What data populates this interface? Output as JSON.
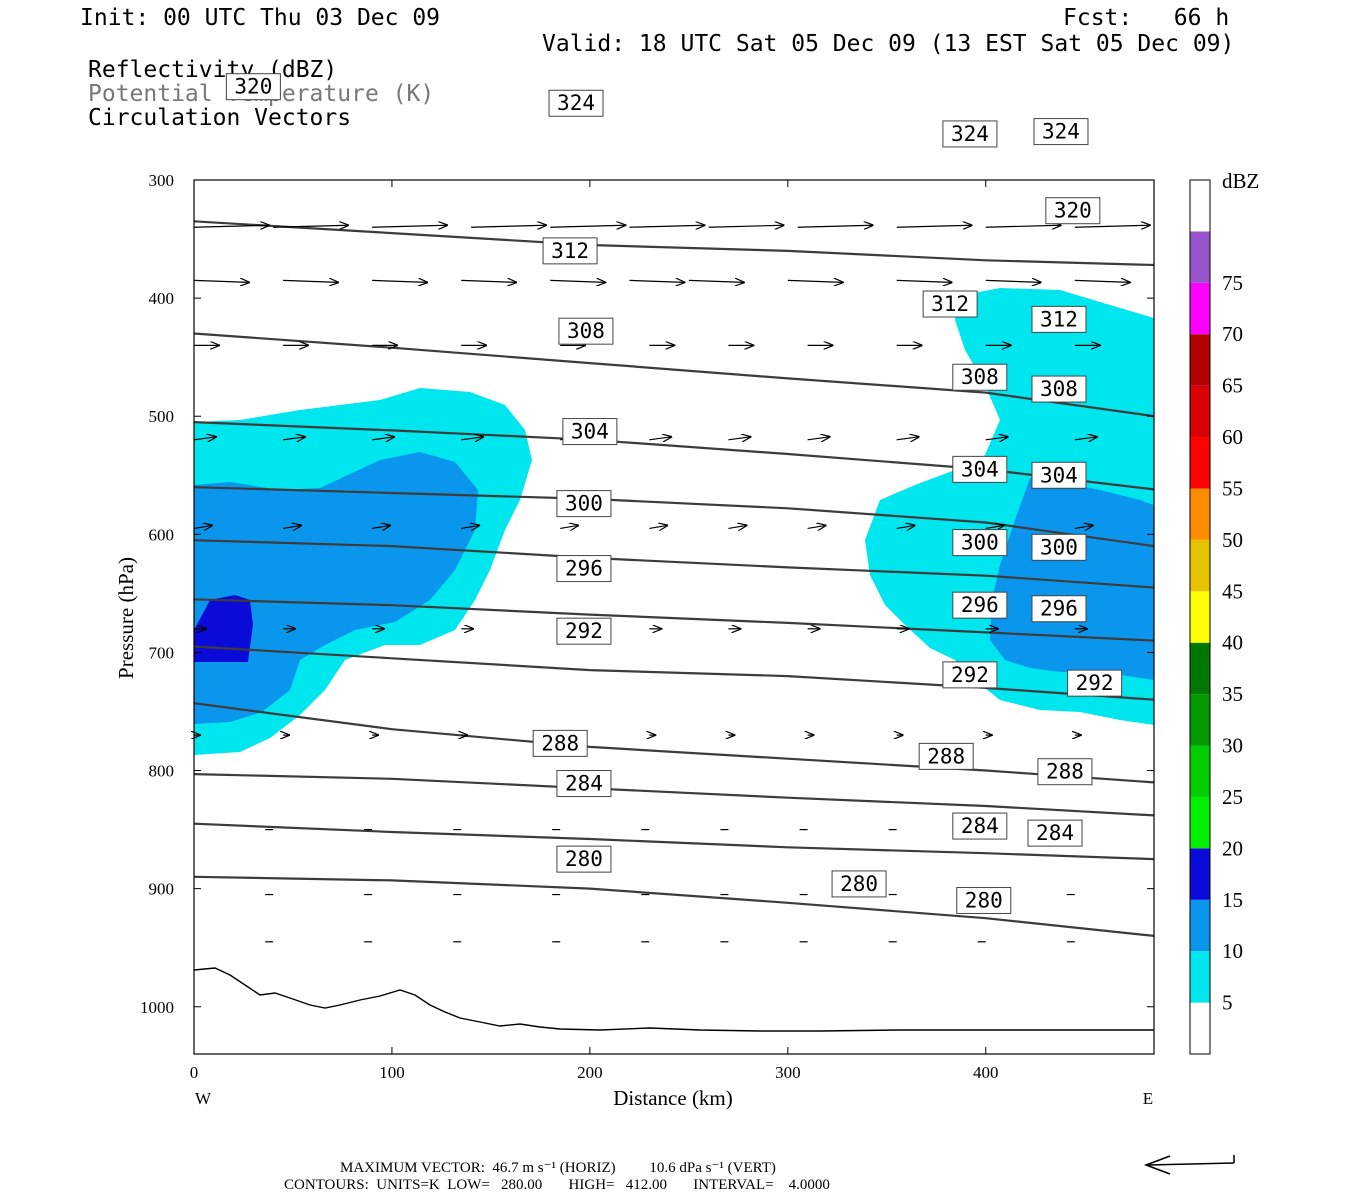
{
  "header": {
    "init": "Init: 00 UTC Thu 03 Dec 09",
    "fcst": "Fcst:   66 h",
    "valid": "Valid: 18 UTC Sat 05 Dec 09 (13 EST Sat 05 Dec 09)",
    "field1": "Reflectivity (dBZ)",
    "field2": "Potential Temperature (K)",
    "field3": "Circulation Vectors"
  },
  "footer": {
    "max_vector": "MAXIMUM VECTOR:  46.7 m s⁻¹ (HORIZ)         10.6 dPa s⁻¹ (VERT)",
    "contours": "CONTOURS:  UNITS=K  LOW=   280.00       HIGH=   412.00       INTERVAL=    4.0000"
  },
  "colors": {
    "refl_5": "#00e6ee",
    "refl_10": "#0b96ee",
    "refl_15": "#0b0bd9",
    "contour": "#3c3c3c"
  },
  "chart_data": {
    "type": "heatmap",
    "xlabel": "Distance (km)",
    "ylabel": "Pressure (hPa)",
    "xlim": [
      0,
      485
    ],
    "ylim": [
      1040,
      300
    ],
    "x_ticks": [
      0,
      100,
      200,
      300,
      400
    ],
    "y_ticks": [
      300,
      400,
      500,
      600,
      700,
      800,
      900,
      1000
    ],
    "x_end_labels": {
      "left": "W",
      "right": "E"
    },
    "colorbar": {
      "title": "dBZ",
      "levels": [
        5,
        10,
        15,
        20,
        25,
        30,
        35,
        40,
        45,
        50,
        55,
        60,
        65,
        70,
        75
      ],
      "colors": [
        "#00e6ee",
        "#0b96ee",
        "#0b0bd9",
        "#00ee00",
        "#00cc00",
        "#009900",
        "#007700",
        "#ffff00",
        "#e6c300",
        "#ff8c00",
        "#ff0000",
        "#d80000",
        "#b00000",
        "#ff00ff",
        "#9955cc",
        "#ffffff"
      ]
    },
    "theta_contours": [
      {
        "value": 280,
        "x": [
          0,
          100,
          200,
          300,
          400,
          485
        ],
        "p": [
          890,
          893,
          900,
          912,
          925,
          940
        ],
        "label_at": [
          [
            197,
            875
          ],
          [
            336,
            896
          ],
          [
            399,
            910
          ]
        ]
      },
      {
        "value": 284,
        "x": [
          0,
          100,
          200,
          300,
          400,
          485
        ],
        "p": [
          845,
          852,
          858,
          865,
          870,
          875
        ],
        "label_at": [
          [
            197,
            811
          ],
          [
            397,
            847
          ],
          [
            435,
            853
          ]
        ]
      },
      {
        "value": 288,
        "x": [
          0,
          100,
          200,
          300,
          400,
          485
        ],
        "p": [
          803,
          807,
          815,
          823,
          830,
          838
        ],
        "label_at": [
          [
            185,
            777
          ],
          [
            380,
            788
          ],
          [
            440,
            801
          ]
        ]
      },
      {
        "value": 292,
        "x": [
          0,
          100,
          200,
          300,
          400,
          485
        ],
        "p": [
          743,
          765,
          780,
          790,
          800,
          810
        ],
        "label_at": [
          [
            197,
            682
          ],
          [
            392,
            719
          ],
          [
            455,
            726
          ]
        ]
      },
      {
        "value": 296,
        "x": [
          0,
          100,
          200,
          300,
          400,
          485
        ],
        "p": [
          695,
          705,
          715,
          720,
          730,
          740
        ],
        "label_at": [
          [
            197,
            629
          ],
          [
            397,
            660
          ],
          [
            437,
            663
          ]
        ]
      },
      {
        "value": 300,
        "x": [
          0,
          100,
          200,
          300,
          400,
          485
        ],
        "p": [
          655,
          660,
          668,
          675,
          683,
          690
        ],
        "label_at": [
          [
            197,
            574
          ],
          [
            397,
            607
          ],
          [
            437,
            611
          ]
        ]
      },
      {
        "value": 304,
        "x": [
          0,
          100,
          200,
          300,
          400,
          485
        ],
        "p": [
          605,
          610,
          620,
          628,
          635,
          645
        ],
        "label_at": [
          [
            200,
            513
          ],
          [
            397,
            545
          ],
          [
            437,
            550
          ]
        ]
      },
      {
        "value": 308,
        "x": [
          0,
          100,
          200,
          300,
          400,
          485
        ],
        "p": [
          560,
          565,
          570,
          578,
          590,
          610
        ],
        "label_at": [
          [
            198,
            428
          ],
          [
            397,
            467
          ],
          [
            437,
            477
          ]
        ]
      },
      {
        "value": 312,
        "x": [
          0,
          100,
          200,
          300,
          400,
          485
        ],
        "p": [
          505,
          512,
          520,
          532,
          545,
          562
        ],
        "label_at": [
          [
            190,
            360
          ],
          [
            382,
            405
          ],
          [
            437,
            418
          ]
        ]
      },
      {
        "value": 320,
        "x": [
          0,
          100,
          200,
          300,
          400,
          485
        ],
        "p": [
          430,
          442,
          455,
          468,
          480,
          500
        ],
        "label_at": [
          [
            30,
            221
          ],
          [
            444,
            326
          ]
        ]
      },
      {
        "value": 324,
        "x": [
          0,
          100,
          200,
          300,
          400,
          485
        ],
        "p": [
          335,
          345,
          355,
          360,
          368,
          372
        ],
        "label_at": [
          [
            193,
            235
          ],
          [
            392,
            261
          ],
          [
            438,
            259
          ]
        ]
      }
    ]
  }
}
